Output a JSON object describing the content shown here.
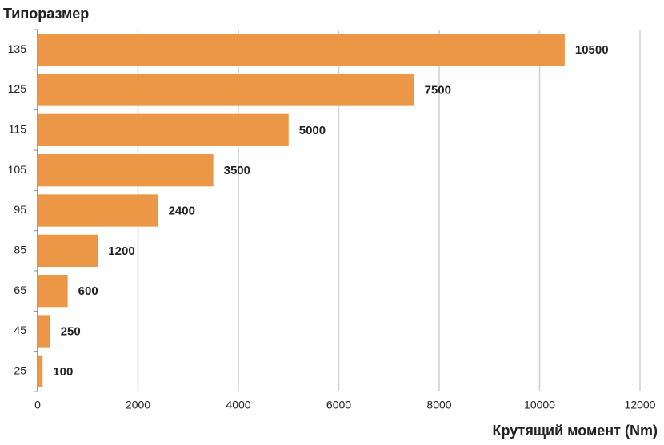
{
  "chart_data": {
    "type": "bar",
    "orientation": "horizontal",
    "y_label": "Типоразмер",
    "x_label": "Крутящий момент (Nm)",
    "categories": [
      "135",
      "125",
      "115",
      "105",
      "95",
      "85",
      "65",
      "45",
      "25"
    ],
    "values": [
      10500,
      7500,
      5000,
      3500,
      2400,
      1200,
      600,
      250,
      100
    ],
    "color": "#ec9745",
    "xlim": [
      0,
      12000
    ],
    "xticks": [
      0,
      2000,
      4000,
      6000,
      8000,
      10000,
      12000
    ],
    "grid": true,
    "data_labels": true
  }
}
